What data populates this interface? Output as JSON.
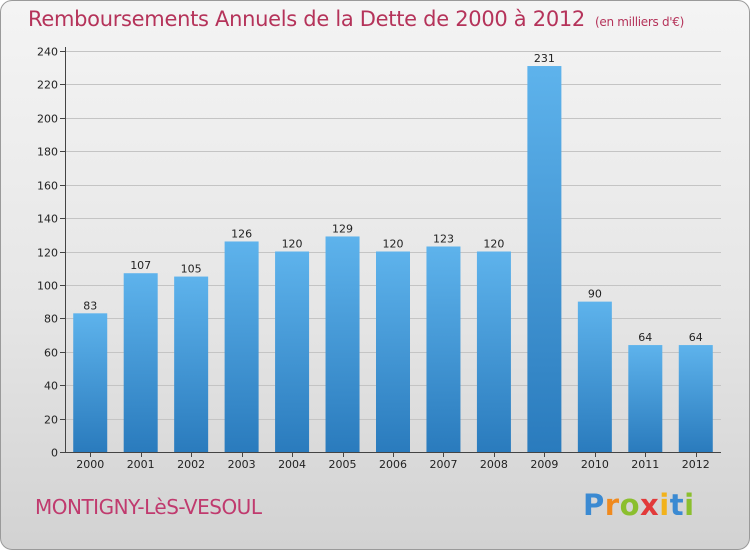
{
  "header": {
    "title": "Remboursements Annuels de la Dette de 2000 à 2012",
    "unit": "(en milliers d'€)"
  },
  "footer": {
    "town": "MONTIGNY-LèS-VESOUL",
    "brand": "Proxiti"
  },
  "colors": {
    "title": "#b5335a",
    "bar_top": "#5eb3ec",
    "bar_bottom": "#2a7bbd"
  },
  "chart_data": {
    "type": "bar",
    "title": "Remboursements Annuels de la Dette de 2000 à 2012",
    "categories": [
      "2000",
      "2001",
      "2002",
      "2003",
      "2004",
      "2005",
      "2006",
      "2007",
      "2008",
      "2009",
      "2010",
      "2011",
      "2012"
    ],
    "values": [
      83,
      107,
      105,
      126,
      120,
      129,
      120,
      123,
      120,
      231,
      90,
      64,
      64
    ],
    "xlabel": "",
    "ylabel": "",
    "ylim": [
      0,
      240
    ],
    "yticks": [
      0,
      20,
      40,
      60,
      80,
      100,
      120,
      140,
      160,
      180,
      200,
      220,
      240
    ],
    "grid": true,
    "legend": "none"
  }
}
